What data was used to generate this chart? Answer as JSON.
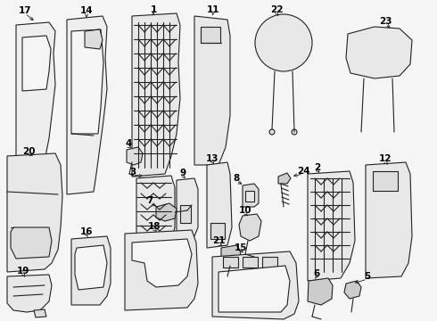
{
  "bg_color": "#f5f5f5",
  "line_color": "#222222",
  "label_color": "#000000",
  "figsize": [
    4.9,
    3.6
  ],
  "dpi": 100,
  "lw": 0.8
}
